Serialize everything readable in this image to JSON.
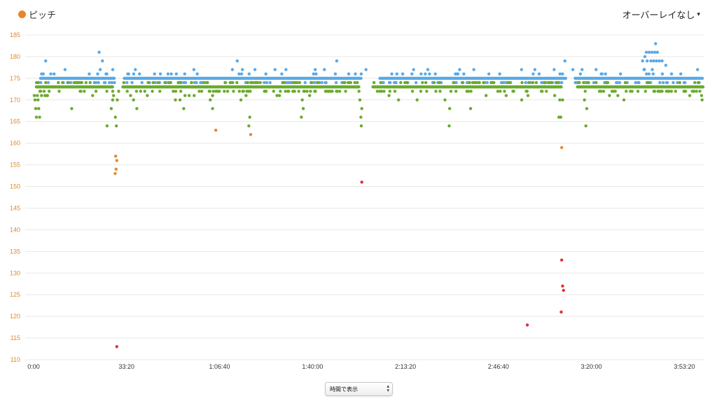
{
  "legend": {
    "label": "ピッチ",
    "color": "#e8872a"
  },
  "overlay_select": {
    "label": "オーバーレイなし",
    "caret": "▾"
  },
  "mode_select": {
    "label": "時間で表示",
    "arrows_up": "▴",
    "arrows_down": "▾"
  },
  "chart_data": {
    "type": "scatter",
    "title": "",
    "xlabel": "",
    "ylabel": "",
    "ylim": [
      110,
      185
    ],
    "xlim": [
      0,
      14400
    ],
    "yticks": [
      110,
      115,
      120,
      125,
      130,
      135,
      140,
      145,
      150,
      155,
      160,
      165,
      170,
      175,
      180,
      185
    ],
    "xticks": [
      {
        "t": 0,
        "label": "0:00"
      },
      {
        "t": 2000,
        "label": "33:20"
      },
      {
        "t": 4000,
        "label": "1:06:40"
      },
      {
        "t": 6000,
        "label": "1:40:00"
      },
      {
        "t": 8000,
        "label": "2:13:20"
      },
      {
        "t": 10000,
        "label": "2:46:40"
      },
      {
        "t": 12000,
        "label": "3:20:00"
      },
      {
        "t": 14000,
        "label": "3:53:20"
      }
    ],
    "grid": true,
    "colors": {
      "blue": "#5aa9e6",
      "green": "#6aaa2e",
      "orange": "#e08a30",
      "red": "#e0303a"
    },
    "bands": [
      {
        "color": "blue",
        "base": 175,
        "spread": [
          174,
          178
        ],
        "segments": [
          [
            150,
            1750
          ],
          [
            1950,
            7050
          ],
          [
            7450,
            11450
          ],
          [
            11650,
            14400
          ]
        ]
      },
      {
        "color": "green",
        "base": 173,
        "spread": [
          171,
          174
        ],
        "segments": [
          [
            60,
            1700
          ],
          [
            1920,
            7000
          ],
          [
            7300,
            11350
          ],
          [
            11700,
            14400
          ]
        ]
      }
    ],
    "points": [
      {
        "c": "green",
        "x": 15,
        "y": 171
      },
      {
        "c": "green",
        "x": 30,
        "y": 170
      },
      {
        "c": "green",
        "x": 45,
        "y": 168
      },
      {
        "c": "green",
        "x": 60,
        "y": 166
      },
      {
        "c": "green",
        "x": 80,
        "y": 171
      },
      {
        "c": "green",
        "x": 95,
        "y": 170
      },
      {
        "c": "green",
        "x": 110,
        "y": 168
      },
      {
        "c": "green",
        "x": 130,
        "y": 166
      },
      {
        "c": "green",
        "x": 170,
        "y": 171
      },
      {
        "c": "blue",
        "x": 260,
        "y": 179
      },
      {
        "c": "green",
        "x": 820,
        "y": 168
      },
      {
        "c": "blue",
        "x": 1410,
        "y": 181
      },
      {
        "c": "blue",
        "x": 1480,
        "y": 179
      },
      {
        "c": "green",
        "x": 1580,
        "y": 164
      },
      {
        "c": "green",
        "x": 1670,
        "y": 168
      },
      {
        "c": "green",
        "x": 1700,
        "y": 170
      },
      {
        "c": "green",
        "x": 1720,
        "y": 171
      },
      {
        "c": "green",
        "x": 1760,
        "y": 166
      },
      {
        "c": "green",
        "x": 1780,
        "y": 164
      },
      {
        "c": "green",
        "x": 1800,
        "y": 170
      },
      {
        "c": "green",
        "x": 1830,
        "y": 172
      },
      {
        "c": "orange",
        "x": 1765,
        "y": 157
      },
      {
        "c": "orange",
        "x": 1790,
        "y": 156
      },
      {
        "c": "orange",
        "x": 1775,
        "y": 154
      },
      {
        "c": "orange",
        "x": 1755,
        "y": 153
      },
      {
        "c": "red",
        "x": 1790,
        "y": 113
      },
      {
        "c": "green",
        "x": 2150,
        "y": 170
      },
      {
        "c": "green",
        "x": 2220,
        "y": 168
      },
      {
        "c": "green",
        "x": 3050,
        "y": 170
      },
      {
        "c": "green",
        "x": 3150,
        "y": 170
      },
      {
        "c": "green",
        "x": 3230,
        "y": 168
      },
      {
        "c": "green",
        "x": 3800,
        "y": 170
      },
      {
        "c": "green",
        "x": 3850,
        "y": 168
      },
      {
        "c": "orange",
        "x": 3920,
        "y": 163
      },
      {
        "c": "blue",
        "x": 4380,
        "y": 179
      },
      {
        "c": "green",
        "x": 4460,
        "y": 170
      },
      {
        "c": "green",
        "x": 4650,
        "y": 166
      },
      {
        "c": "green",
        "x": 4630,
        "y": 164
      },
      {
        "c": "orange",
        "x": 4670,
        "y": 162
      },
      {
        "c": "green",
        "x": 5780,
        "y": 170
      },
      {
        "c": "green",
        "x": 5800,
        "y": 168
      },
      {
        "c": "green",
        "x": 5760,
        "y": 166
      },
      {
        "c": "blue",
        "x": 6520,
        "y": 179
      },
      {
        "c": "green",
        "x": 7020,
        "y": 170
      },
      {
        "c": "green",
        "x": 7060,
        "y": 168
      },
      {
        "c": "green",
        "x": 7040,
        "y": 166
      },
      {
        "c": "green",
        "x": 7050,
        "y": 164
      },
      {
        "c": "red",
        "x": 7060,
        "y": 151
      },
      {
        "c": "blue",
        "x": 7150,
        "y": 177
      },
      {
        "c": "green",
        "x": 7850,
        "y": 170
      },
      {
        "c": "green",
        "x": 8250,
        "y": 170
      },
      {
        "c": "green",
        "x": 8850,
        "y": 170
      },
      {
        "c": "green",
        "x": 8950,
        "y": 168
      },
      {
        "c": "green",
        "x": 8940,
        "y": 164
      },
      {
        "c": "green",
        "x": 9400,
        "y": 168
      },
      {
        "c": "green",
        "x": 10500,
        "y": 170
      },
      {
        "c": "red",
        "x": 10620,
        "y": 118
      },
      {
        "c": "green",
        "x": 11320,
        "y": 170
      },
      {
        "c": "green",
        "x": 11300,
        "y": 166
      },
      {
        "c": "green",
        "x": 11340,
        "y": 166
      },
      {
        "c": "green",
        "x": 11380,
        "y": 170
      },
      {
        "c": "orange",
        "x": 11360,
        "y": 159
      },
      {
        "c": "red",
        "x": 11360,
        "y": 133
      },
      {
        "c": "red",
        "x": 11380,
        "y": 127
      },
      {
        "c": "red",
        "x": 11400,
        "y": 126
      },
      {
        "c": "red",
        "x": 11350,
        "y": 121
      },
      {
        "c": "blue",
        "x": 11430,
        "y": 179
      },
      {
        "c": "blue",
        "x": 11600,
        "y": 177
      },
      {
        "c": "green",
        "x": 11850,
        "y": 170
      },
      {
        "c": "green",
        "x": 11900,
        "y": 168
      },
      {
        "c": "green",
        "x": 11880,
        "y": 164
      },
      {
        "c": "blue",
        "x": 12100,
        "y": 177
      },
      {
        "c": "green",
        "x": 12700,
        "y": 170
      },
      {
        "c": "blue",
        "x": 13100,
        "y": 179
      },
      {
        "c": "blue",
        "x": 13150,
        "y": 180
      },
      {
        "c": "blue",
        "x": 13180,
        "y": 181
      },
      {
        "c": "blue",
        "x": 13240,
        "y": 181
      },
      {
        "c": "blue",
        "x": 13300,
        "y": 181
      },
      {
        "c": "blue",
        "x": 13360,
        "y": 181
      },
      {
        "c": "blue",
        "x": 13380,
        "y": 183
      },
      {
        "c": "blue",
        "x": 13420,
        "y": 181
      },
      {
        "c": "blue",
        "x": 13200,
        "y": 179
      },
      {
        "c": "blue",
        "x": 13280,
        "y": 179
      },
      {
        "c": "blue",
        "x": 13340,
        "y": 179
      },
      {
        "c": "blue",
        "x": 13400,
        "y": 179
      },
      {
        "c": "blue",
        "x": 13460,
        "y": 179
      },
      {
        "c": "blue",
        "x": 13520,
        "y": 179
      },
      {
        "c": "blue",
        "x": 13140,
        "y": 177
      },
      {
        "c": "blue",
        "x": 13600,
        "y": 178
      },
      {
        "c": "green",
        "x": 14380,
        "y": 170
      }
    ]
  }
}
